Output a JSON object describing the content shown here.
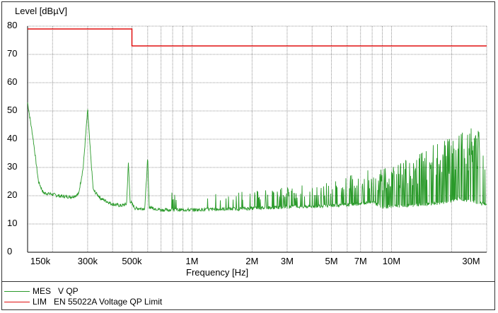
{
  "chart_data": {
    "type": "line",
    "title": "",
    "xlabel": "Frequency [Hz]",
    "ylabel": "Level [dBµV]",
    "xscale": "log",
    "xlim": [
      150000,
      30000000
    ],
    "ylim": [
      0,
      80
    ],
    "grid": true,
    "yticks": [
      0,
      10,
      20,
      30,
      40,
      50,
      60,
      70,
      80
    ],
    "xticks": [
      {
        "label": "150k",
        "f": 150000
      },
      {
        "label": "300k",
        "f": 300000
      },
      {
        "label": "500k",
        "f": 500000
      },
      {
        "label": "1M",
        "f": 1000000
      },
      {
        "label": "2M",
        "f": 2000000
      },
      {
        "label": "3M",
        "f": 3000000
      },
      {
        "label": "5M",
        "f": 5000000
      },
      {
        "label": "7M",
        "f": 7000000
      },
      {
        "label": "10M",
        "f": 10000000
      },
      {
        "label": "30M",
        "f": 30000000
      }
    ],
    "series": [
      {
        "name": "MES  V QP",
        "color": "#2a9a2a",
        "points": [
          [
            150000,
            53
          ],
          [
            160000,
            40
          ],
          [
            170000,
            25
          ],
          [
            180000,
            21
          ],
          [
            200000,
            20.5
          ],
          [
            220000,
            19.8
          ],
          [
            250000,
            19.6
          ],
          [
            270000,
            20.5
          ],
          [
            285000,
            30
          ],
          [
            300000,
            50.5
          ],
          [
            310000,
            35
          ],
          [
            320000,
            22
          ],
          [
            350000,
            19
          ],
          [
            400000,
            17
          ],
          [
            440000,
            16.5
          ],
          [
            470000,
            17
          ],
          [
            480000,
            31.5
          ],
          [
            490000,
            18
          ],
          [
            520000,
            15.5
          ],
          [
            580000,
            15.5
          ],
          [
            600000,
            33.5
          ],
          [
            610000,
            16
          ],
          [
            700000,
            15
          ],
          [
            800000,
            15
          ],
          [
            1000000,
            15
          ],
          [
            2000000,
            15.5
          ],
          [
            3000000,
            16
          ],
          [
            5000000,
            16.5
          ],
          [
            7000000,
            17
          ],
          [
            8000000,
            18
          ],
          [
            9000000,
            16
          ],
          [
            12000000,
            16.5
          ],
          [
            18000000,
            17.5
          ],
          [
            22000000,
            19
          ],
          [
            25000000,
            18
          ],
          [
            30000000,
            17
          ]
        ],
        "peaks": [
          [
            700000,
            25
          ],
          [
            800000,
            22
          ],
          [
            900000,
            23
          ],
          [
            1000000,
            22
          ],
          [
            1500000,
            21
          ],
          [
            2000000,
            22
          ],
          [
            3000000,
            23
          ],
          [
            5000000,
            25
          ],
          [
            7000000,
            29
          ],
          [
            10000000,
            30
          ],
          [
            20000000,
            42
          ],
          [
            27000000,
            46
          ],
          [
            30000000,
            35
          ]
        ]
      },
      {
        "name": "LIM  EN 55022A Voltage QP Limit",
        "color": "#e01010",
        "points": [
          [
            150000,
            79
          ],
          [
            500000,
            79
          ],
          [
            500000,
            73
          ],
          [
            30000000,
            73
          ]
        ]
      }
    ],
    "legend": [
      {
        "label": "MES   V QP",
        "color": "#2a9a2a"
      },
      {
        "label": "LIM   EN 55022A Voltage QP Limit",
        "color": "#e01010"
      }
    ],
    "legend_position": "bottom-left"
  }
}
